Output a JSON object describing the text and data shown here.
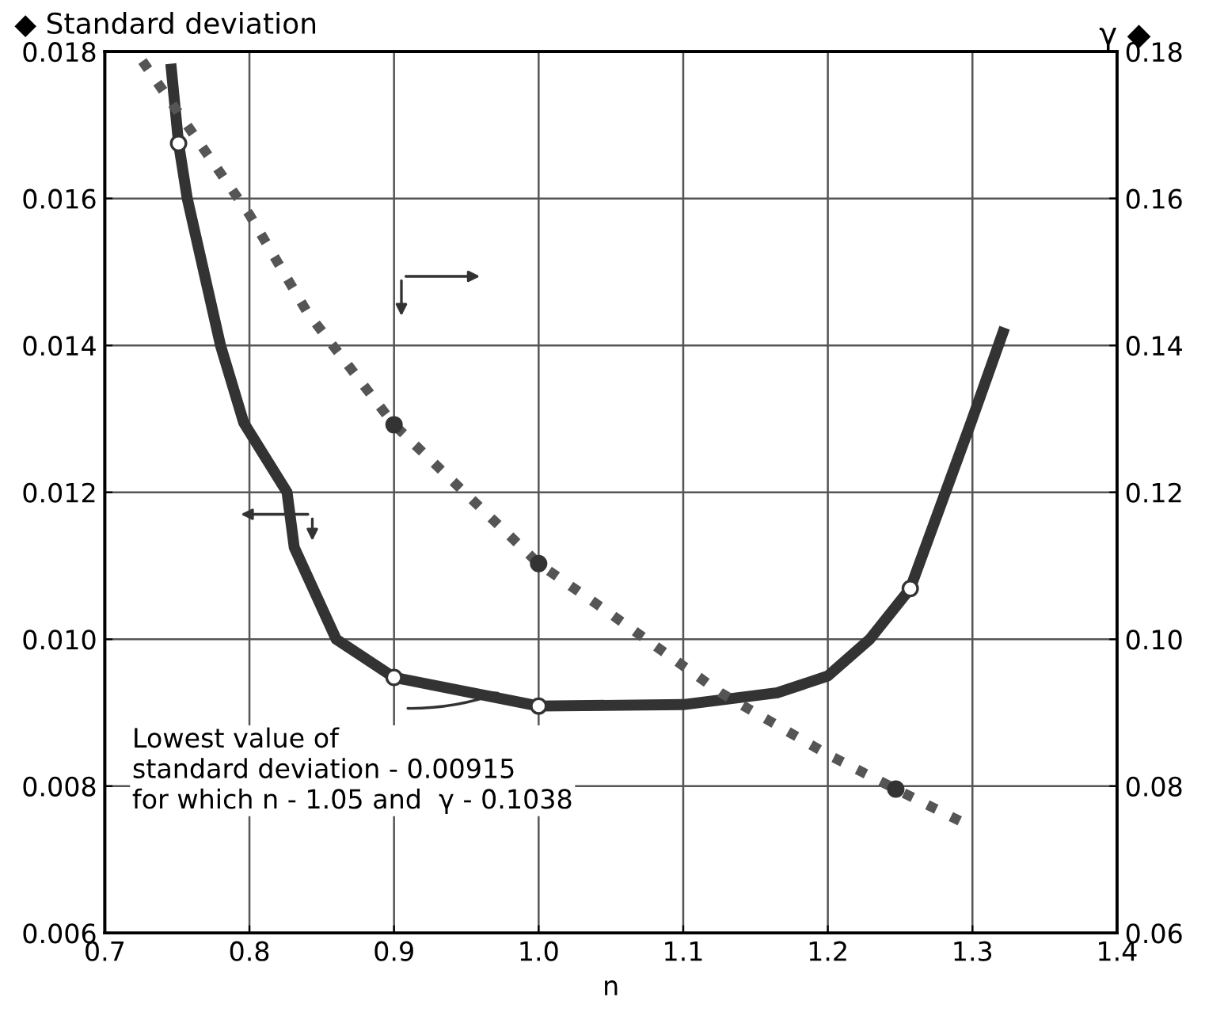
{
  "chart_data": {
    "type": "line",
    "xlabel": "n",
    "ylabel": "◆ Standard deviation",
    "y2label": "γ ◆",
    "xlim": [
      0.7,
      1.4
    ],
    "xticks": [
      {
        "value": 0.7,
        "label": "0.7"
      },
      {
        "value": 0.8,
        "label": "0.8"
      },
      {
        "value": 0.9,
        "label": "0.9"
      },
      {
        "value": 1.0,
        "label": "1.0"
      },
      {
        "value": 1.1,
        "label": "1.1"
      },
      {
        "value": 1.2,
        "label": "1.2"
      },
      {
        "value": 1.3,
        "label": "1.3"
      },
      {
        "value": 1.4,
        "label": "1.4"
      }
    ],
    "ylim": [
      0.006,
      0.018
    ],
    "yticks": [
      {
        "value": 0.006,
        "label": "0.006"
      },
      {
        "value": 0.008,
        "label": "0.008"
      },
      {
        "value": 0.01,
        "label": "0.010"
      },
      {
        "value": 0.012,
        "label": "0.012"
      },
      {
        "value": 0.014,
        "label": "0.014"
      },
      {
        "value": 0.016,
        "label": "0.016"
      },
      {
        "value": 0.018,
        "label": "0.018"
      }
    ],
    "y2lim": [
      0.06,
      0.18
    ],
    "y2ticks": [
      {
        "value": 0.06,
        "label": "0.06"
      },
      {
        "value": 0.08,
        "label": "0.08"
      },
      {
        "value": 0.1,
        "label": "0.10"
      },
      {
        "value": 0.12,
        "label": "0.12"
      },
      {
        "value": 0.14,
        "label": "0.14"
      },
      {
        "value": 0.16,
        "label": "0.16"
      },
      {
        "value": 0.18,
        "label": "0.18"
      }
    ],
    "grid": true,
    "legend": false,
    "series": [
      {
        "color": "#333333",
        "line_style": "solid",
        "x": [
          0.746,
          0.751,
          0.757,
          0.78,
          0.796,
          0.826,
          0.831,
          0.86,
          0.9,
          1.0,
          1.1,
          1.165,
          1.2,
          1.229,
          1.257,
          1.299,
          1.321
        ],
        "values": [
          0.01776,
          0.01675,
          0.016,
          0.014,
          0.01295,
          0.012,
          0.01125,
          0.01,
          0.00948,
          0.00909,
          0.00911,
          0.00927,
          0.0095,
          0.01,
          0.01069,
          0.01295,
          0.01417
        ]
      },
      {
        "axis": "y2",
        "color": "#555555",
        "line_style": "dotted",
        "x": [
          0.726,
          0.8,
          0.84,
          0.9,
          1.0,
          1.048,
          1.126,
          1.2,
          1.247,
          1.293
        ],
        "values": [
          0.1787,
          0.1578,
          0.1445,
          0.1292,
          0.1103,
          0.1037,
          0.0927,
          0.0843,
          0.0796,
          0.0751
        ]
      },
      {
        "type": "scatter",
        "color": "#ffffff",
        "marker": "circle",
        "x": [
          0.751,
          0.9,
          1.0,
          1.257
        ],
        "values": [
          0.01675,
          0.00948,
          0.00909,
          0.01069
        ]
      },
      {
        "type": "scatter",
        "axis": "y2",
        "color": "#333333",
        "marker": "circle",
        "x": [
          0.9,
          1.0,
          1.247
        ],
        "values": [
          0.1292,
          0.1103,
          0.0796
        ]
      }
    ],
    "annotations": [
      "Lowest value of\nstandard deviation - 0.00915\nfor which n - 1.05 and  γ - 0.1038"
    ]
  }
}
